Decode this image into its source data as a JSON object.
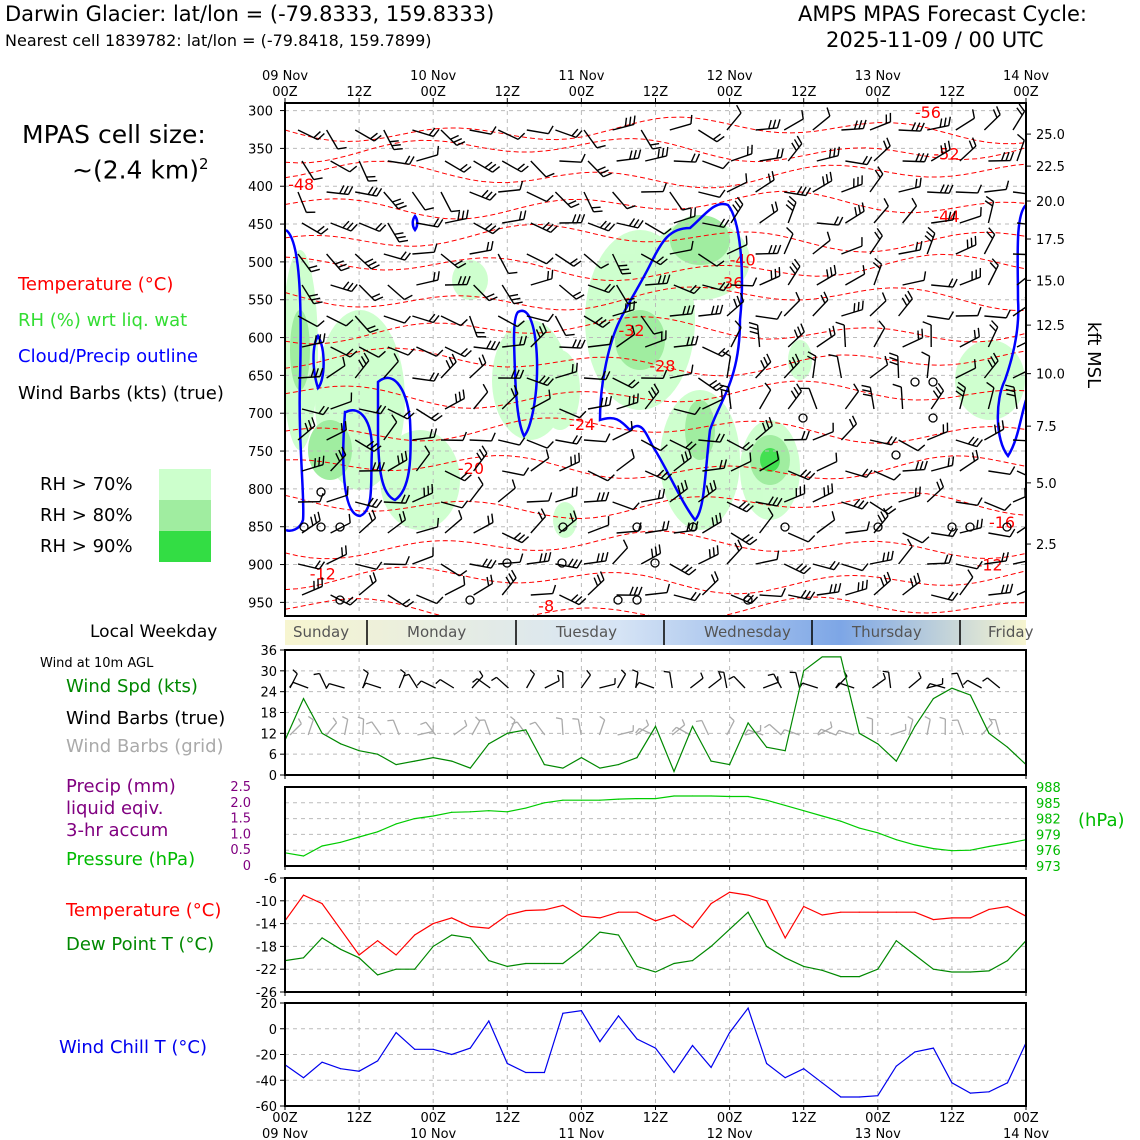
{
  "header": {
    "station": "Darwin Glacier: lat/lon = (-79.8333, 159.8333)",
    "nearest": "Nearest cell 1839782: lat/lon = (-79.8418, 159.7899)",
    "cycle_line1": "AMPS MPAS Forecast Cycle:",
    "cycle_line2": "2025-11-09 / 00 UTC"
  },
  "cell_size": {
    "label": "MPAS cell size:",
    "value": "~(2.4 km)",
    "exp": "2"
  },
  "legend": {
    "temperature": "Temperature (°C)",
    "rh": "RH (%) wrt liq. wat",
    "cloud": "Cloud/Precip outline",
    "wind": "Wind Barbs (kts) (true)",
    "rh_levels": [
      "RH > 70%",
      "RH > 80%",
      "RH > 90%"
    ],
    "colors": {
      "rh70": "#ccffcc",
      "rh80": "#a0eda0",
      "rh90": "#33dd44",
      "temperature": "#ff0000",
      "rh": "#33dd33",
      "cloud": "#0000ff"
    }
  },
  "time_axis": {
    "top_major": [
      {
        "date": "09 Nov",
        "hour": "00Z"
      },
      {
        "date": "10 Nov",
        "hour": "00Z"
      },
      {
        "date": "11 Nov",
        "hour": "00Z"
      },
      {
        "date": "12 Nov",
        "hour": "00Z"
      },
      {
        "date": "13 Nov",
        "hour": "00Z"
      },
      {
        "date": "14 Nov",
        "hour": "00Z"
      }
    ],
    "minor_label": "12Z",
    "bottom_hours": [
      "00Z",
      "12Z",
      "00Z",
      "12Z",
      "00Z",
      "12Z",
      "00Z",
      "12Z",
      "00Z",
      "12Z",
      "00Z"
    ],
    "bottom_dates": [
      "09 Nov",
      "10 Nov",
      "11 Nov",
      "12 Nov",
      "13 Nov",
      "14 Nov"
    ]
  },
  "weekday": {
    "label": "Local Weekday",
    "days": [
      "Sunday",
      "Monday",
      "Tuesday",
      "Wednesday",
      "Thursday",
      "Friday"
    ]
  },
  "chart_data": [
    {
      "type": "contour",
      "name": "cross-section",
      "x_range_hours": [
        0,
        120
      ],
      "pressure_ticks": [
        300,
        350,
        400,
        450,
        500,
        550,
        600,
        650,
        700,
        750,
        800,
        850,
        900,
        950
      ],
      "height_ticks": [
        "25.0",
        "22.5",
        "20.0",
        "17.5",
        "15.0",
        "12.5",
        "10.0",
        "7.5",
        "5.0",
        "2.5"
      ],
      "height_label": "kft MSL",
      "temp_contour_labels": [
        {
          "text": "-56",
          "t": 102,
          "p": 310
        },
        {
          "text": "-52",
          "t": 105,
          "p": 365
        },
        {
          "text": "-48",
          "t": 0.5,
          "p": 405
        },
        {
          "text": "-44",
          "t": 105,
          "p": 447
        },
        {
          "text": "-40",
          "t": 72,
          "p": 505
        },
        {
          "text": "-36",
          "t": 70,
          "p": 535
        },
        {
          "text": "-32",
          "t": 54,
          "p": 598
        },
        {
          "text": "-28",
          "t": 59,
          "p": 645
        },
        {
          "text": "-24",
          "t": 46,
          "p": 722
        },
        {
          "text": "-20",
          "t": 28,
          "p": 780
        },
        {
          "text": "-16",
          "t": 114,
          "p": 852
        },
        {
          "text": "-12",
          "t": 4,
          "p": 920
        },
        {
          "text": "-12",
          "t": 112,
          "p": 908
        },
        {
          "text": "-8",
          "t": 41,
          "p": 962
        }
      ]
    },
    {
      "type": "line",
      "name": "wind-speed",
      "title": "Wind at 10m AGL",
      "labels": [
        "Wind Spd (kts)",
        "Wind Barbs (true)",
        "Wind Barbs (grid)"
      ],
      "ylim": [
        0,
        36
      ],
      "yticks": [
        0,
        6,
        12,
        18,
        24,
        30,
        36
      ],
      "x": [
        0,
        3,
        6,
        9,
        12,
        15,
        18,
        21,
        24,
        27,
        30,
        33,
        36,
        39,
        42,
        45,
        48,
        51,
        54,
        57,
        60,
        63,
        66,
        69,
        72,
        75,
        78,
        81,
        84,
        87,
        90,
        93,
        96,
        99,
        102,
        105,
        108,
        111,
        114,
        117,
        120
      ],
      "series": [
        {
          "name": "Wind Spd (kts)",
          "color": "#008800",
          "values": [
            10,
            22,
            12,
            9,
            7,
            6,
            3,
            4,
            5,
            4,
            2,
            9,
            12,
            13,
            3,
            2,
            5,
            2,
            3,
            5,
            14,
            1,
            14,
            4,
            3,
            15,
            8,
            7,
            30,
            34,
            34,
            12,
            9,
            4,
            14,
            22,
            25,
            23,
            12,
            8,
            3
          ]
        }
      ]
    },
    {
      "type": "line",
      "name": "precip-pressure",
      "labels": [
        "Precip (mm)",
        "liquid eqiv.",
        "3-hr accum",
        "Pressure (hPa)"
      ],
      "precip_ticks": [
        "0",
        "0.5",
        "1.0",
        "1.5",
        "2.0",
        "2.5"
      ],
      "pressure_ticks": [
        "973",
        "976",
        "979",
        "982",
        "985",
        "988"
      ],
      "pressure_unit": "(hPa)",
      "ylim": [
        973,
        988
      ],
      "x": [
        0,
        3,
        6,
        9,
        12,
        15,
        18,
        21,
        24,
        27,
        30,
        33,
        36,
        39,
        42,
        45,
        48,
        51,
        54,
        57,
        60,
        63,
        66,
        69,
        72,
        75,
        78,
        81,
        84,
        87,
        90,
        93,
        96,
        99,
        102,
        105,
        108,
        111,
        114,
        117,
        120
      ],
      "series": [
        {
          "name": "Pressure (hPa)",
          "color": "#00cc00",
          "values": [
            975.5,
            974.9,
            976.8,
            977.5,
            978.5,
            979.5,
            981,
            982,
            982.5,
            983.2,
            983.3,
            983.5,
            983.3,
            984,
            985,
            985.5,
            985.5,
            985.5,
            985.7,
            985.8,
            985.8,
            986.3,
            986.3,
            986.3,
            986.2,
            986.2,
            985.5,
            984.5,
            983.5,
            982.5,
            981.5,
            980.2,
            979.3,
            978,
            977,
            976.3,
            975.9,
            976,
            976.7,
            977.3,
            978
          ]
        }
      ]
    },
    {
      "type": "line",
      "name": "temperature-dewpoint",
      "labels": [
        "Temperature (°C)",
        "Dew Point T (°C)"
      ],
      "ylim": [
        -26,
        -6
      ],
      "yticks": [
        -26,
        -22,
        -18,
        -14,
        -10,
        -6
      ],
      "x": [
        0,
        3,
        6,
        9,
        12,
        15,
        18,
        21,
        24,
        27,
        30,
        33,
        36,
        39,
        42,
        45,
        48,
        51,
        54,
        57,
        60,
        63,
        66,
        69,
        72,
        75,
        78,
        81,
        84,
        87,
        90,
        93,
        96,
        99,
        102,
        105,
        108,
        111,
        114,
        117,
        120
      ],
      "series": [
        {
          "name": "Temperature",
          "color": "#ff0000",
          "values": [
            -13.5,
            -9,
            -10.5,
            -15,
            -19.5,
            -17,
            -19.5,
            -16,
            -14,
            -13,
            -14.5,
            -14.8,
            -12.5,
            -11.7,
            -11.6,
            -10.8,
            -12.7,
            -13,
            -12,
            -12,
            -13.5,
            -12.5,
            -14.7,
            -10.5,
            -8.5,
            -9,
            -10,
            -16.5,
            -11,
            -12.5,
            -12,
            -12,
            -12,
            -12,
            -12,
            -13.3,
            -13,
            -13,
            -11.5,
            -11,
            -12.7
          ]
        },
        {
          "name": "Dew Point",
          "color": "#008800",
          "values": [
            -20.5,
            -20,
            -16.5,
            -18.5,
            -20,
            -23,
            -22,
            -22,
            -18,
            -16,
            -16.5,
            -20.5,
            -21.5,
            -21,
            -21,
            -21,
            -18.5,
            -15.5,
            -16,
            -21.5,
            -22.5,
            -21,
            -20.5,
            -18,
            -15,
            -12,
            -18,
            -20,
            -21.5,
            -22.2,
            -23.3,
            -23.3,
            -22,
            -17,
            -19.5,
            -22,
            -22.5,
            -22.5,
            -22.3,
            -20.5,
            -17
          ]
        }
      ]
    },
    {
      "type": "line",
      "name": "wind-chill",
      "labels": [
        "Wind Chill T (°C)"
      ],
      "ylim": [
        -60,
        20
      ],
      "yticks": [
        -60,
        -40,
        -20,
        0,
        20
      ],
      "x": [
        0,
        3,
        6,
        9,
        12,
        15,
        18,
        21,
        24,
        27,
        30,
        33,
        36,
        39,
        42,
        45,
        48,
        51,
        54,
        57,
        60,
        63,
        66,
        69,
        72,
        75,
        78,
        81,
        84,
        87,
        90,
        93,
        96,
        99,
        102,
        105,
        108,
        111,
        114,
        117,
        120
      ],
      "series": [
        {
          "name": "Wind Chill",
          "color": "#0000ee",
          "values": [
            -28,
            -38,
            -26,
            -31,
            -33,
            -25,
            -3,
            -16,
            -16,
            -20,
            -15,
            6,
            -27,
            -34,
            -34,
            12,
            14,
            -10,
            10,
            -8,
            -15,
            -34,
            -13,
            -30,
            -3,
            16,
            -27,
            -38,
            -31,
            -42,
            -53,
            -53,
            -52,
            -29,
            -18,
            -15,
            -42,
            -50,
            -49,
            -42,
            -11
          ]
        }
      ]
    }
  ]
}
